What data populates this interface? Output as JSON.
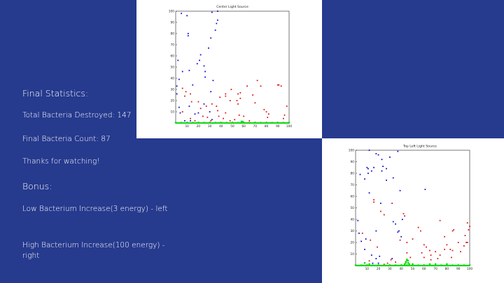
{
  "slide": {
    "background": "#263a8e",
    "text_color": "#ffffff",
    "final_heading": "Final Statistics:",
    "destroyed_line": "Total Bacteria Destroyed: 147",
    "count_line": "Final Bacteria Count: 87",
    "thanks_line": "Thanks for watching!",
    "bonus_heading": "Bonus:",
    "low_line": "Low Bacterium Increase(3 energy) - left",
    "high_line": "High Bacterium Increase(100 energy) - right"
  },
  "colors": {
    "blue": "#1010d8",
    "red": "#e01818",
    "green": "#18d818"
  },
  "chart_data": [
    {
      "type": "scatter",
      "title": "Center Light Source",
      "xlim": [
        0,
        100
      ],
      "ylim": [
        0,
        100
      ],
      "xticks": [
        10,
        20,
        30,
        40,
        50,
        60,
        70,
        80,
        90,
        100
      ],
      "yticks": [
        10,
        20,
        30,
        40,
        50,
        60,
        70,
        80,
        90,
        100
      ],
      "grid": false,
      "series": [
        {
          "color": "blue",
          "points": [
            [
              5,
              98
            ],
            [
              10,
              96
            ],
            [
              32,
              99
            ],
            [
              37,
              100
            ],
            [
              36,
              89
            ],
            [
              37,
              92
            ],
            [
              35,
              83
            ],
            [
              11,
              80
            ],
            [
              11,
              78
            ],
            [
              31,
              76
            ],
            [
              2,
              56
            ],
            [
              29,
              67
            ],
            [
              22,
              61
            ],
            [
              21,
              56
            ],
            [
              19,
              53
            ],
            [
              25,
              51
            ],
            [
              26,
              46
            ],
            [
              6,
              46
            ],
            [
              12,
              47
            ],
            [
              3,
              39
            ],
            [
              15,
              34
            ],
            [
              1,
              33
            ],
            [
              1,
              26
            ],
            [
              26,
              41
            ],
            [
              33,
              38
            ],
            [
              31,
              28
            ],
            [
              3,
              14
            ],
            [
              12,
              15
            ],
            [
              25,
              17
            ],
            [
              20,
              9
            ],
            [
              17,
              8
            ],
            [
              30,
              10
            ],
            [
              4,
              9
            ],
            [
              32,
              3
            ],
            [
              8,
              2
            ],
            [
              13,
              2
            ]
          ]
        },
        {
          "color": "red",
          "points": [
            [
              13,
              26
            ],
            [
              8,
              24
            ],
            [
              9,
              28
            ],
            [
              6,
              31
            ],
            [
              14,
              19
            ],
            [
              22,
              13
            ],
            [
              27,
              15
            ],
            [
              32,
              17
            ],
            [
              20,
              19
            ],
            [
              36,
              15
            ],
            [
              39,
              23
            ],
            [
              44,
              24
            ],
            [
              44,
              26
            ],
            [
              48,
              20
            ],
            [
              49,
              30
            ],
            [
              55,
              26
            ],
            [
              57,
              27
            ],
            [
              54,
              20
            ],
            [
              57,
              22
            ],
            [
              55,
              17
            ],
            [
              63,
              33
            ],
            [
              68,
              25
            ],
            [
              70,
              18
            ],
            [
              72,
              38
            ],
            [
              75,
              33
            ],
            [
              78,
              12
            ],
            [
              80,
              10
            ],
            [
              81,
              5
            ],
            [
              82,
              8
            ],
            [
              90,
              34
            ],
            [
              91,
              34
            ],
            [
              93,
              33
            ],
            [
              95,
              4
            ],
            [
              96,
              7
            ],
            [
              98,
              15
            ],
            [
              42,
              4
            ],
            [
              52,
              3
            ],
            [
              60,
              6
            ],
            [
              65,
              2
            ],
            [
              56,
              7
            ],
            [
              44,
              9
            ],
            [
              48,
              2
            ],
            [
              13,
              4
            ],
            [
              17,
              2
            ],
            [
              37,
              11
            ],
            [
              31,
              2
            ],
            [
              28,
              5
            ],
            [
              6,
              10
            ],
            [
              24,
              6
            ],
            [
              38,
              6
            ],
            [
              59,
              1
            ],
            [
              54,
              0
            ]
          ]
        },
        {
          "color": "green",
          "points": [
            [
              0,
              0
            ],
            [
              5,
              0
            ],
            [
              10,
              0
            ],
            [
              15,
              0
            ],
            [
              20,
              0
            ],
            [
              25,
              0
            ],
            [
              30,
              0
            ],
            [
              35,
              0
            ],
            [
              40,
              0
            ],
            [
              45,
              0
            ],
            [
              50,
              0
            ],
            [
              55,
              0
            ],
            [
              60,
              0
            ],
            [
              65,
              0
            ],
            [
              70,
              0
            ],
            [
              75,
              0
            ],
            [
              80,
              0
            ],
            [
              85,
              0
            ],
            [
              90,
              0
            ],
            [
              95,
              0
            ],
            [
              100,
              0
            ],
            [
              58,
              1
            ],
            [
              59,
              1
            ]
          ]
        }
      ]
    },
    {
      "type": "scatter",
      "title": "Top Left Light Source",
      "xlim": [
        0,
        100
      ],
      "ylim": [
        0,
        100
      ],
      "xticks": [
        10,
        20,
        30,
        40,
        50,
        60,
        70,
        80,
        90,
        100
      ],
      "yticks": [
        10,
        20,
        30,
        40,
        50,
        60,
        70,
        80,
        90,
        100
      ],
      "grid": false,
      "series": [
        {
          "color": "blue",
          "points": [
            [
              12,
              100
            ],
            [
              18,
              97
            ],
            [
              20,
              96
            ],
            [
              23,
              92
            ],
            [
              30,
              94
            ],
            [
              37,
              99
            ],
            [
              24,
              86
            ],
            [
              10,
              85
            ],
            [
              11,
              84
            ],
            [
              16,
              85
            ],
            [
              14,
              82
            ],
            [
              27,
              84
            ],
            [
              23,
              82
            ],
            [
              11,
              80
            ],
            [
              4,
              79
            ],
            [
              8,
              75
            ],
            [
              33,
              76
            ],
            [
              27,
              74
            ],
            [
              39,
              65
            ],
            [
              61,
              66
            ],
            [
              12,
              63
            ],
            [
              22,
              54
            ],
            [
              41,
              40
            ],
            [
              33,
              38
            ],
            [
              35,
              36
            ],
            [
              37,
              29
            ],
            [
              40,
              25
            ],
            [
              18,
              30
            ],
            [
              2,
              39
            ],
            [
              3,
              28
            ],
            [
              5,
              21
            ],
            [
              9,
              23
            ],
            [
              8,
              14
            ],
            [
              14,
              9
            ],
            [
              18,
              6
            ],
            [
              21,
              8
            ],
            [
              15,
              2
            ],
            [
              20,
              2
            ],
            [
              8,
              0
            ],
            [
              15,
              0
            ],
            [
              32,
              6
            ],
            [
              38,
              30
            ]
          ]
        },
        {
          "color": "red",
          "points": [
            [
              6,
              28
            ],
            [
              16,
              57
            ],
            [
              16,
              55
            ],
            [
              22,
              47
            ],
            [
              32,
              54
            ],
            [
              42,
              45
            ],
            [
              43,
              43
            ],
            [
              39,
              22
            ],
            [
              45,
              20
            ],
            [
              50,
              23
            ],
            [
              55,
              33
            ],
            [
              57,
              30
            ],
            [
              60,
              18
            ],
            [
              62,
              16
            ],
            [
              65,
              13
            ],
            [
              70,
              12
            ],
            [
              74,
              39
            ],
            [
              78,
              25
            ],
            [
              85,
              30
            ],
            [
              86,
              31
            ],
            [
              90,
              20
            ],
            [
              92,
              12
            ],
            [
              97,
              20
            ],
            [
              98,
              20
            ],
            [
              96,
              26
            ],
            [
              99,
              31
            ],
            [
              100,
              34
            ],
            [
              98,
              37
            ],
            [
              95,
              17
            ],
            [
              84,
              7
            ],
            [
              78,
              14
            ],
            [
              72,
              6
            ],
            [
              74,
              9
            ],
            [
              66,
              9
            ],
            [
              60,
              7
            ],
            [
              48,
              7
            ],
            [
              45,
              11
            ],
            [
              35,
              3
            ],
            [
              31,
              5
            ],
            [
              28,
              2
            ],
            [
              25,
              1
            ],
            [
              13,
              22
            ],
            [
              19,
              16
            ],
            [
              12,
              4
            ],
            [
              25,
              44
            ],
            [
              58,
              11
            ],
            [
              66,
              5
            ],
            [
              83,
              14
            ],
            [
              85,
              13
            ],
            [
              80,
              18
            ]
          ]
        },
        {
          "color": "green",
          "points": [
            [
              0,
              0
            ],
            [
              5,
              0
            ],
            [
              10,
              0
            ],
            [
              15,
              0
            ],
            [
              20,
              0
            ],
            [
              25,
              0
            ],
            [
              30,
              0
            ],
            [
              35,
              0
            ],
            [
              40,
              0
            ],
            [
              45,
              0
            ],
            [
              50,
              0
            ],
            [
              55,
              0
            ],
            [
              60,
              0
            ],
            [
              65,
              0
            ],
            [
              70,
              0
            ],
            [
              75,
              0
            ],
            [
              80,
              0
            ],
            [
              85,
              0
            ],
            [
              90,
              0
            ],
            [
              95,
              0
            ],
            [
              100,
              0
            ],
            [
              44,
              2
            ],
            [
              45,
              4
            ],
            [
              46,
              2
            ],
            [
              45,
              0
            ],
            [
              47,
              1
            ],
            [
              43,
              1
            ],
            [
              44,
              3
            ],
            [
              46,
              4
            ],
            [
              45,
              5
            ],
            [
              8,
              2
            ],
            [
              12,
              1
            ],
            [
              50,
              1
            ],
            [
              65,
              1
            ],
            [
              70,
              1
            ],
            [
              80,
              1
            ]
          ]
        }
      ]
    }
  ]
}
